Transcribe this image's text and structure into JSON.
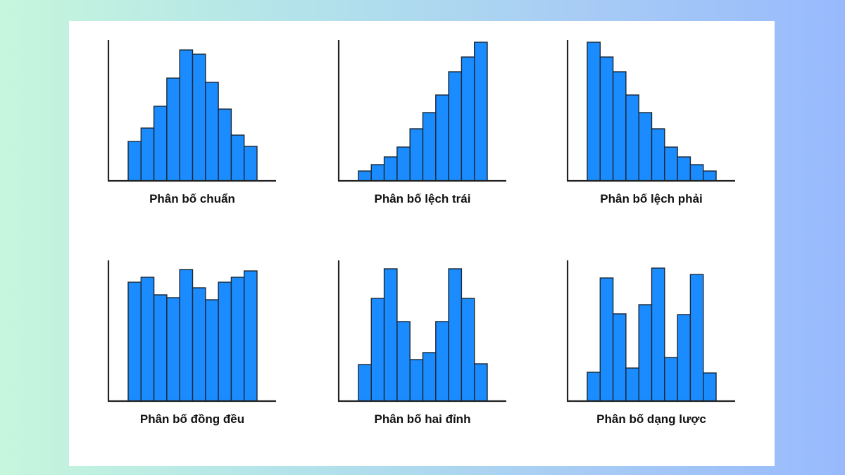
{
  "chart_data": [
    {
      "type": "bar",
      "title": "Phân bố chuẩn",
      "values": [
        56,
        75,
        106,
        146,
        186,
        180,
        140,
        102,
        65,
        49
      ],
      "ylim": [
        0,
        200
      ],
      "grid": false,
      "bar_color": "#1a8cff"
    },
    {
      "type": "bar",
      "title": "Phân bố lệch trái",
      "values": [
        14,
        23,
        34,
        48,
        74,
        97,
        122,
        155,
        176,
        197
      ],
      "ylim": [
        0,
        200
      ],
      "grid": false,
      "bar_color": "#1a8cff"
    },
    {
      "type": "bar",
      "title": "Phân bố lệch phải",
      "values": [
        197,
        176,
        155,
        122,
        97,
        74,
        48,
        34,
        23,
        14
      ],
      "ylim": [
        0,
        200
      ],
      "grid": false,
      "bar_color": "#1a8cff"
    },
    {
      "type": "bar",
      "title": "Phân bố đồng đều",
      "values": [
        169,
        176,
        151,
        147,
        187,
        161,
        144,
        169,
        176,
        185
      ],
      "ylim": [
        0,
        200
      ],
      "grid": false,
      "bar_color": "#1a8cff"
    },
    {
      "type": "bar",
      "title": "Phân bố hai đỉnh",
      "values": [
        52,
        146,
        188,
        113,
        59,
        69,
        113,
        188,
        146,
        53
      ],
      "ylim": [
        0,
        200
      ],
      "grid": false,
      "bar_color": "#1a8cff"
    },
    {
      "type": "bar",
      "title": "Phân bố dạng lược",
      "values": [
        41,
        175,
        124,
        47,
        137,
        189,
        62,
        123,
        180,
        40
      ],
      "ylim": [
        0,
        200
      ],
      "grid": false,
      "bar_color": "#1a8cff"
    }
  ]
}
